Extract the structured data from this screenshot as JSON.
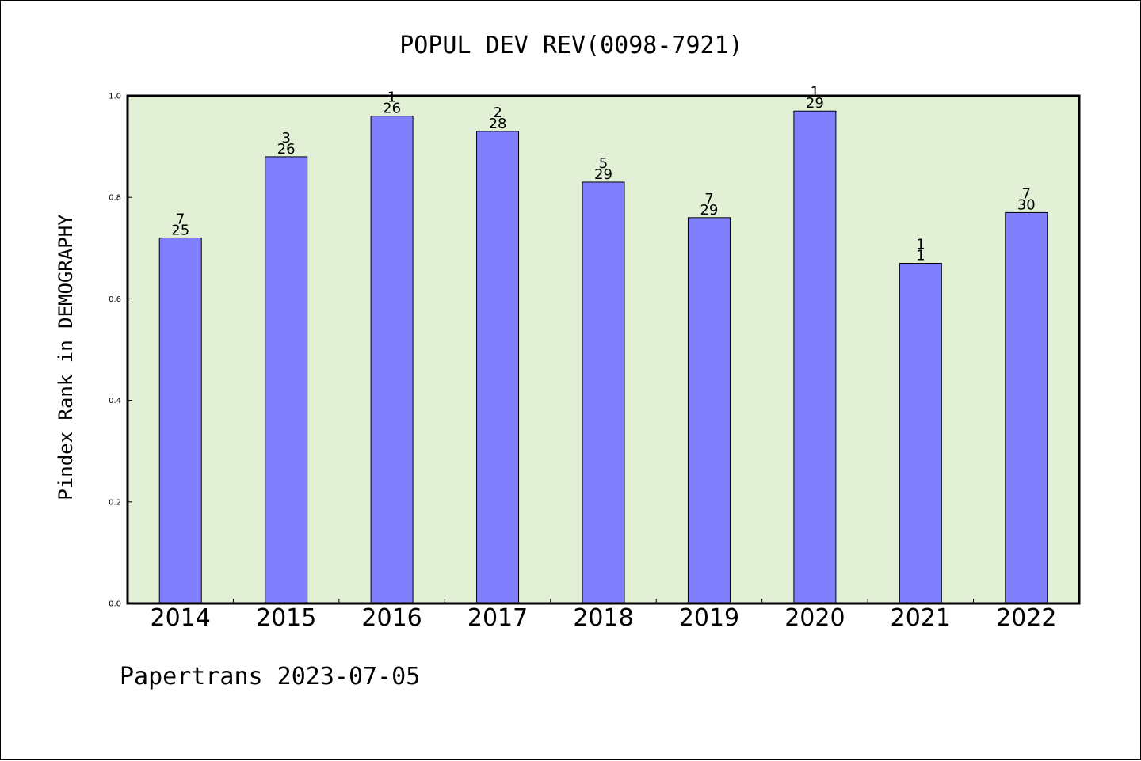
{
  "colors": {
    "plot_background": "#e2f0d6",
    "bar_fill": "#8080ff",
    "bar_stroke": "#000000",
    "axis": "#000000"
  },
  "chart_data": {
    "type": "bar",
    "title": "POPUL DEV REV(0098-7921)",
    "xlabel": "",
    "ylabel": "Pindex Rank in DEMOGRAPHY",
    "ylim": [
      0,
      1.0
    ],
    "yticks": [
      "0.0",
      "0.2",
      "0.4",
      "0.6",
      "0.8",
      "1.0"
    ],
    "grid": false,
    "categories": [
      "2014",
      "2015",
      "2016",
      "2017",
      "2018",
      "2019",
      "2020",
      "2021",
      "2022"
    ],
    "values": [
      0.72,
      0.88,
      0.96,
      0.93,
      0.83,
      0.76,
      0.97,
      0.67,
      0.77
    ],
    "data_labels": [
      {
        "top": "7",
        "bottom": "25"
      },
      {
        "top": "3",
        "bottom": "26"
      },
      {
        "top": "1",
        "bottom": "26"
      },
      {
        "top": "2",
        "bottom": "28"
      },
      {
        "top": "5",
        "bottom": "29"
      },
      {
        "top": "7",
        "bottom": "29"
      },
      {
        "top": "1",
        "bottom": "29"
      },
      {
        "top": "1",
        "bottom": "1"
      },
      {
        "top": "7",
        "bottom": "30"
      }
    ]
  },
  "footer": {
    "text": "Papertrans 2023-07-05"
  }
}
